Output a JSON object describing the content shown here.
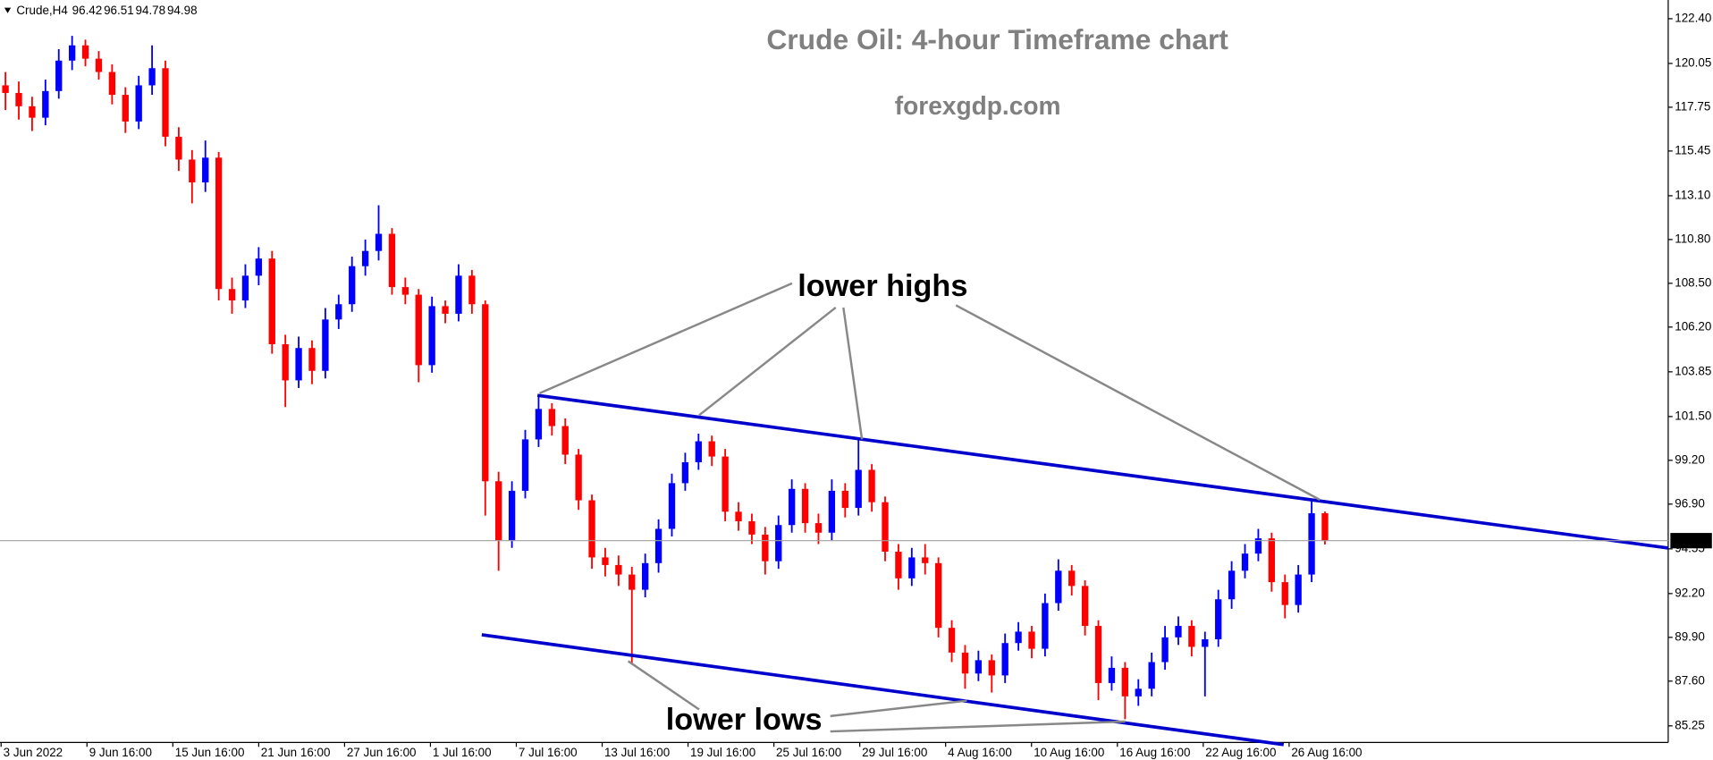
{
  "chart_data": {
    "type": "candlestick",
    "symbol": "Crude,H4",
    "title": "Crude Oil: 4-hour Timeframe chart",
    "subtitle": "forexgdp.com",
    "annotations": [
      "lower highs",
      "lower lows"
    ],
    "x_labels": [
      "3 Jun 2022",
      "9 Jun 16:00",
      "15 Jun 16:00",
      "21 Jun 16:00",
      "27 Jun 16:00",
      "1 Jul 16:00",
      "7 Jul 16:00",
      "13 Jul 16:00",
      "19 Jul 16:00",
      "25 Jul 16:00",
      "29 Jul 16:00",
      "4 Aug 16:00",
      "10 Aug 16:00",
      "16 Aug 16:00",
      "22 Aug 16:00",
      "26 Aug 16:00"
    ],
    "open": [
      118.9,
      118.5,
      117.8,
      117.2,
      118.6,
      120.2,
      121.0,
      120.3,
      119.6,
      118.4,
      117.0,
      118.9,
      119.8,
      116.2,
      115.0,
      113.8,
      115.1,
      108.2,
      107.6,
      108.9,
      109.8,
      105.3,
      103.4,
      105.1,
      103.9,
      106.6,
      107.4,
      109.4,
      110.2,
      111.1,
      108.3,
      107.9,
      104.2,
      107.3,
      106.9,
      108.9,
      107.4,
      98.1,
      95.0,
      97.6,
      100.3,
      101.9,
      101.0,
      99.5,
      97.1,
      94.1,
      93.7,
      93.2,
      92.4,
      93.8,
      95.6,
      98.0,
      99.1,
      100.2,
      99.4,
      96.5,
      96.0,
      95.3,
      93.9,
      95.8,
      97.7,
      95.9,
      95.4,
      97.6,
      96.7,
      98.7,
      97.0,
      94.4,
      93.0,
      94.1,
      93.8,
      90.4,
      89.1,
      88.0,
      88.7,
      87.9,
      89.6,
      90.2,
      89.3,
      91.7,
      93.4,
      92.6,
      90.5,
      87.5,
      88.3,
      86.8,
      87.2,
      88.6,
      89.9,
      90.5,
      89.4,
      89.8,
      91.9,
      93.4,
      94.3,
      95.1,
      92.8,
      91.6,
      93.2,
      96.42
    ],
    "high": [
      119.6,
      119.1,
      118.3,
      119.2,
      120.8,
      121.5,
      121.3,
      120.7,
      120.0,
      118.8,
      119.4,
      121.0,
      120.2,
      116.7,
      115.5,
      116.0,
      115.4,
      108.8,
      109.5,
      110.4,
      110.2,
      105.8,
      105.7,
      105.5,
      107.2,
      107.9,
      109.9,
      110.8,
      112.6,
      111.4,
      108.8,
      108.2,
      107.8,
      107.6,
      109.5,
      109.2,
      107.6,
      98.6,
      98.1,
      100.8,
      102.6,
      102.2,
      101.4,
      99.8,
      97.4,
      94.6,
      94.2,
      93.6,
      94.3,
      96.1,
      98.5,
      99.6,
      100.6,
      100.5,
      99.8,
      97.0,
      96.4,
      95.7,
      96.3,
      98.2,
      98.0,
      96.4,
      98.2,
      98.0,
      100.3,
      99.0,
      97.3,
      94.8,
      94.6,
      94.8,
      94.1,
      90.8,
      89.5,
      89.2,
      89.0,
      90.1,
      90.7,
      90.5,
      92.2,
      94.0,
      93.7,
      92.9,
      90.8,
      88.9,
      88.6,
      87.7,
      89.1,
      90.5,
      91.0,
      90.8,
      90.2,
      92.4,
      93.9,
      94.8,
      95.6,
      95.4,
      93.2,
      93.7,
      97.1,
      96.51
    ],
    "low": [
      117.6,
      117.1,
      116.5,
      116.8,
      118.2,
      119.7,
      119.9,
      119.2,
      117.9,
      116.4,
      116.6,
      118.4,
      115.7,
      114.4,
      112.7,
      113.3,
      107.6,
      106.9,
      107.2,
      108.4,
      104.8,
      102.0,
      103.0,
      103.2,
      103.5,
      106.1,
      107.0,
      108.9,
      109.7,
      107.9,
      107.4,
      103.3,
      103.8,
      106.4,
      106.5,
      106.9,
      96.3,
      93.4,
      94.6,
      97.2,
      99.9,
      100.5,
      99.0,
      96.6,
      93.5,
      93.1,
      92.6,
      88.5,
      92.0,
      93.3,
      95.2,
      97.6,
      98.7,
      98.9,
      96.0,
      95.5,
      94.8,
      93.2,
      93.5,
      95.4,
      95.4,
      94.8,
      95.0,
      96.2,
      96.3,
      96.5,
      93.9,
      92.4,
      92.6,
      93.2,
      89.9,
      88.6,
      87.2,
      87.6,
      87.0,
      87.5,
      89.2,
      88.8,
      88.9,
      91.3,
      92.1,
      90.0,
      86.6,
      87.1,
      85.6,
      86.3,
      86.8,
      88.2,
      89.5,
      88.9,
      86.8,
      89.4,
      91.4,
      93.0,
      93.9,
      92.3,
      90.9,
      91.2,
      92.8,
      94.78
    ],
    "close": [
      118.5,
      117.8,
      117.2,
      118.6,
      120.2,
      121.0,
      120.3,
      119.6,
      118.4,
      117.0,
      118.9,
      119.8,
      116.2,
      115.0,
      113.8,
      115.1,
      108.2,
      107.6,
      108.9,
      109.8,
      105.3,
      103.4,
      105.1,
      103.9,
      106.6,
      107.4,
      109.4,
      110.2,
      111.1,
      108.3,
      107.9,
      104.2,
      107.3,
      106.9,
      108.9,
      107.4,
      98.1,
      95.0,
      97.6,
      100.3,
      101.9,
      101.0,
      99.5,
      97.1,
      94.1,
      93.7,
      93.2,
      92.4,
      93.8,
      95.6,
      98.0,
      99.1,
      100.2,
      99.4,
      96.5,
      96.0,
      95.3,
      93.9,
      95.8,
      97.7,
      95.9,
      95.4,
      97.6,
      96.7,
      98.7,
      97.0,
      94.4,
      93.0,
      94.1,
      93.8,
      90.4,
      89.1,
      88.0,
      88.7,
      87.9,
      89.6,
      90.2,
      89.3,
      91.7,
      93.4,
      92.6,
      90.5,
      87.5,
      88.3,
      86.8,
      87.2,
      88.6,
      89.9,
      90.5,
      89.4,
      89.8,
      91.9,
      93.4,
      94.3,
      95.1,
      92.8,
      91.6,
      93.2,
      96.42,
      94.98
    ],
    "up_color": "#0000ff",
    "down_color": "#ff0000",
    "last_price": 94.98,
    "ylim": [
      84.38,
      123.21
    ],
    "yticks": [
      {
        "value": 122.4,
        "label": "122.40"
      },
      120.05,
      117.75,
      115.45,
      {
        "value": 113.1,
        "label": "113.10"
      },
      {
        "value": 110.8,
        "label": "110.80"
      },
      {
        "value": 108.5,
        "label": "108.50"
      },
      {
        "value": 106.2,
        "label": "106.20"
      },
      103.85,
      {
        "value": 101.5,
        "label": "101.50"
      },
      {
        "value": 99.2,
        "label": "99.20"
      },
      {
        "value": 96.9,
        "label": "96.90"
      },
      94.55,
      {
        "value": 92.2,
        "label": "92.20"
      },
      {
        "value": 89.9,
        "label": "89.90"
      },
      {
        "value": 87.6,
        "label": "87.60"
      },
      85.25
    ]
  }
}
